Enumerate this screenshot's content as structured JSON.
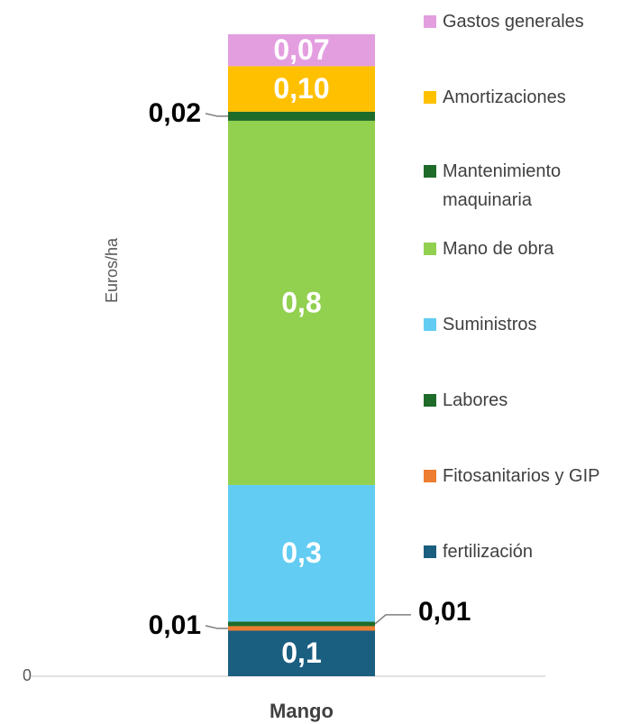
{
  "chart_data": {
    "type": "stacked_bar",
    "y_label": "Euros/ha",
    "categories": [
      "Mango"
    ],
    "ylim": [
      0,
      1.41
    ],
    "yticks": [
      0
    ],
    "series": [
      {
        "name": "fertilización",
        "color": "#1a5e80",
        "values": [
          0.1
        ],
        "value_labels": [
          "0,1"
        ]
      },
      {
        "name": "Fitosanitarios y GIP",
        "color": "#ed7d31",
        "values": [
          0.01
        ],
        "value_labels": [
          "0,01"
        ]
      },
      {
        "name": "Labores",
        "color": "#1e6b2a",
        "values": [
          0.01
        ],
        "value_labels": [
          "0,01"
        ]
      },
      {
        "name": "Suministros",
        "color": "#62ccf2",
        "values": [
          0.3
        ],
        "value_labels": [
          "0,3"
        ]
      },
      {
        "name": "Mano de obra",
        "color": "#92d050",
        "values": [
          0.8
        ],
        "value_labels": [
          "0,8"
        ]
      },
      {
        "name": "Mantenimiento maquinaria",
        "color": "#1e6b2a",
        "values": [
          0.02
        ],
        "value_labels": [
          "0,02"
        ]
      },
      {
        "name": "Amortizaciones",
        "color": "#ffc000",
        "values": [
          0.1
        ],
        "value_labels": [
          "0,10"
        ]
      },
      {
        "name": "Gastos generales",
        "color": "#e39ee0",
        "values": [
          0.07
        ],
        "value_labels": [
          "0,07"
        ]
      }
    ]
  }
}
